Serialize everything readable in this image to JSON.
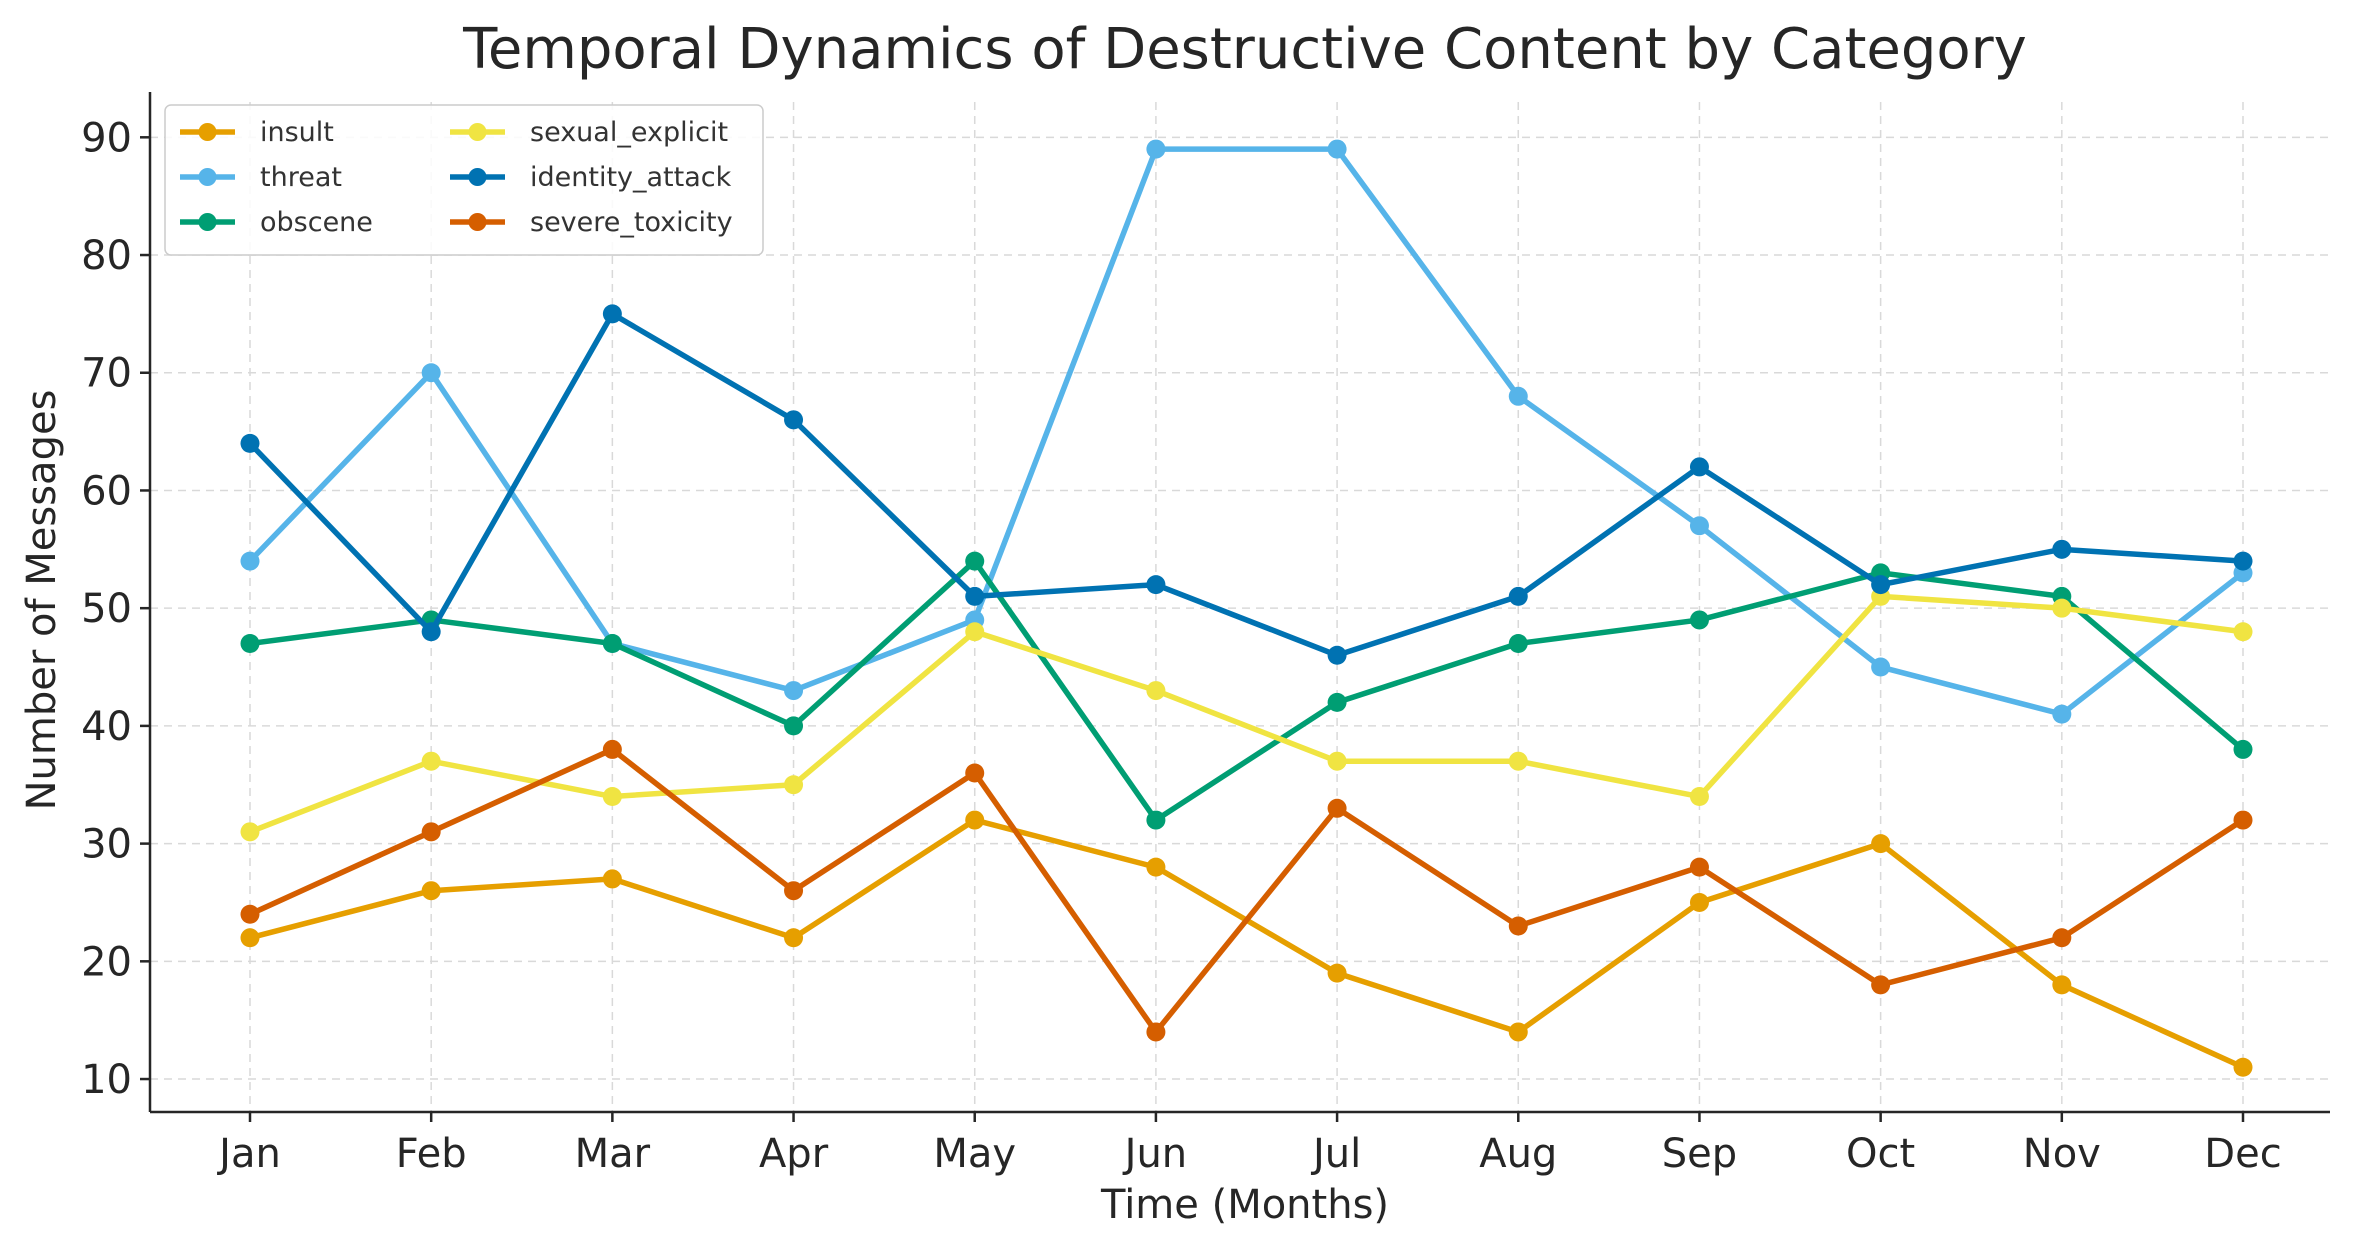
{
  "chart_data": {
    "type": "line",
    "title": "Temporal Dynamics of Destructive Content by Category",
    "xlabel": "Time (Months)",
    "ylabel": "Number of Messages",
    "categories": [
      "Jan",
      "Feb",
      "Mar",
      "Apr",
      "May",
      "Jun",
      "Jul",
      "Aug",
      "Sep",
      "Oct",
      "Nov",
      "Dec"
    ],
    "ylim": [
      7.2,
      93
    ],
    "yticks": [
      10,
      20,
      30,
      40,
      50,
      60,
      70,
      80,
      90
    ],
    "grid": true,
    "legend_position": "top-left",
    "series": [
      {
        "name": "insult",
        "color": "#E69F00",
        "values": [
          22,
          26,
          27,
          22,
          32,
          28,
          19,
          14,
          25,
          30,
          18,
          11
        ]
      },
      {
        "name": "threat",
        "color": "#56B4E9",
        "values": [
          54,
          70,
          47,
          43,
          49,
          89,
          89,
          68,
          57,
          45,
          41,
          53
        ]
      },
      {
        "name": "obscene",
        "color": "#009E73",
        "values": [
          47,
          49,
          47,
          40,
          54,
          32,
          42,
          47,
          49,
          53,
          51,
          38
        ]
      },
      {
        "name": "sexual_explicit",
        "color": "#F0E442",
        "values": [
          31,
          37,
          34,
          35,
          48,
          43,
          37,
          37,
          34,
          51,
          50,
          48
        ]
      },
      {
        "name": "identity_attack",
        "color": "#0072B2",
        "values": [
          64,
          48,
          75,
          66,
          51,
          52,
          46,
          51,
          62,
          52,
          55,
          54
        ]
      },
      {
        "name": "severe_toxicity",
        "color": "#D55E00",
        "values": [
          24,
          31,
          38,
          26,
          36,
          14,
          33,
          23,
          28,
          18,
          22,
          32
        ]
      }
    ]
  }
}
